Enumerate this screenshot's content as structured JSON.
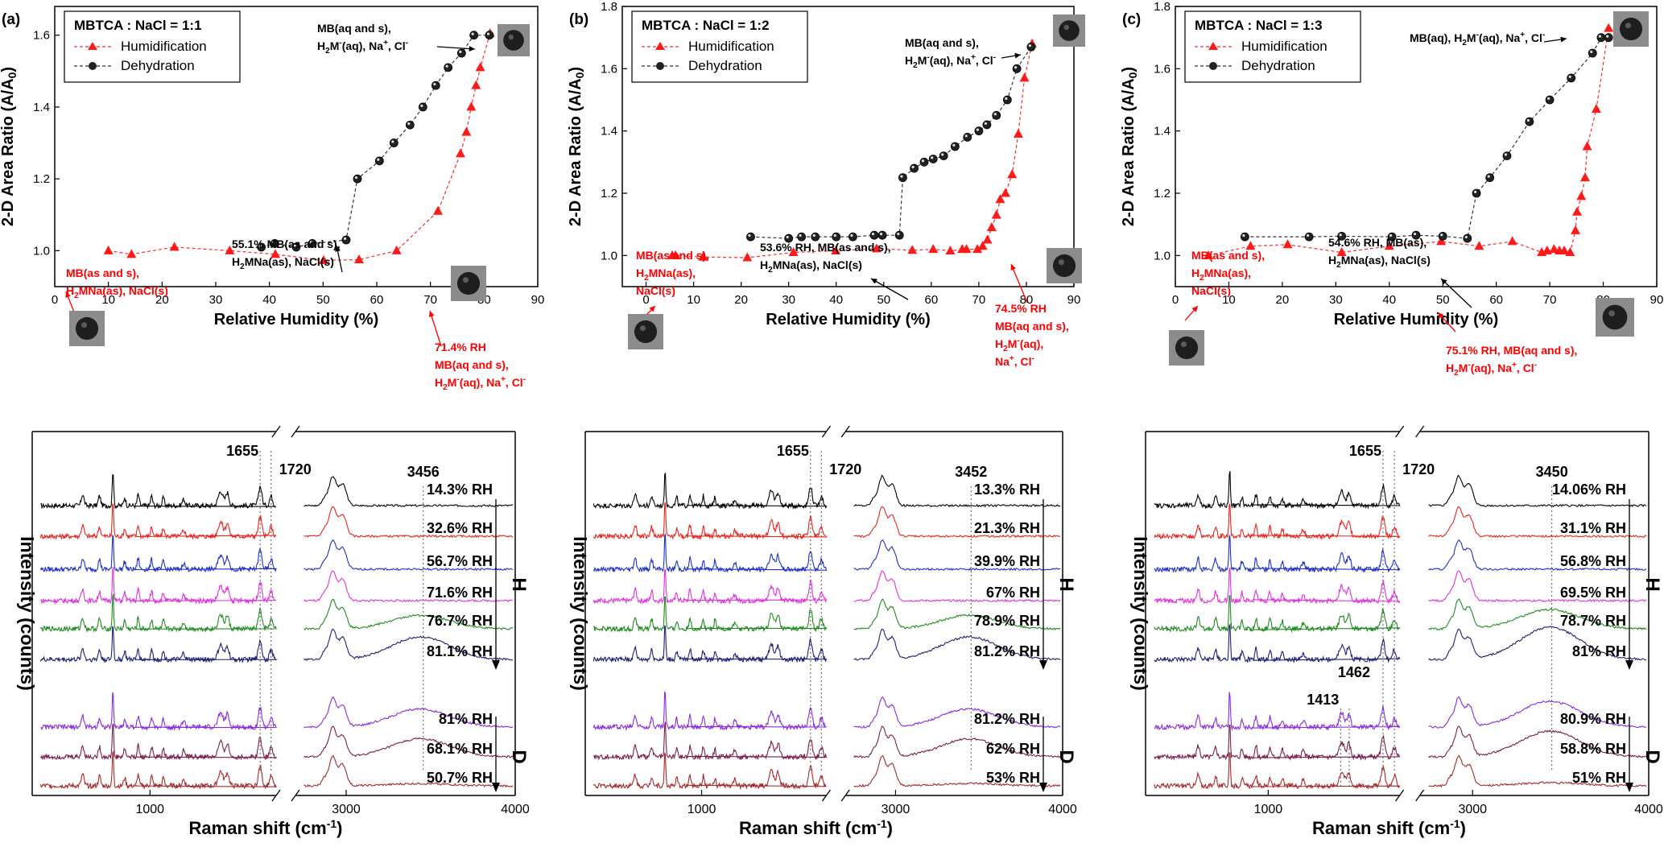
{
  "chart_data": [
    {
      "type": "line",
      "panel": "(a)",
      "legend_title": "MBTCA : NaCl = 1:1",
      "xlabel": "Relative Humidity (%)",
      "ylabel": "2-D Area Ratio (A/A0)",
      "xlim": [
        0,
        90
      ],
      "ylim": [
        0.9,
        1.68
      ],
      "xticks": [
        0,
        10,
        20,
        30,
        40,
        50,
        60,
        70,
        80,
        90
      ],
      "yticks": [
        1.0,
        1.2,
        1.4,
        1.6
      ],
      "series": [
        {
          "name": "Humidification",
          "color": "#ff2a2a",
          "marker": "triangle",
          "x": [
            10,
            14.3,
            22.3,
            32.6,
            41.1,
            50.1,
            56.7,
            63.7,
            71.4,
            75.6,
            76.7,
            77.6,
            78.5,
            79.3,
            81.1
          ],
          "y": [
            1.0,
            0.99,
            1.01,
            1.0,
            0.99,
            0.973,
            0.975,
            1.0,
            1.11,
            1.27,
            1.33,
            1.4,
            1.46,
            1.51,
            1.605
          ]
        },
        {
          "name": "Dehydration",
          "color": "#333333",
          "marker": "circle",
          "x": [
            38.5,
            41.0,
            45.0,
            48.0,
            54.3,
            56.4,
            60.5,
            63.2,
            66.2,
            68.6,
            71.0,
            73.3,
            75.8,
            78.1,
            81.0
          ],
          "y": [
            1.01,
            1.02,
            1.01,
            1.02,
            1.03,
            1.2,
            1.25,
            1.3,
            1.35,
            1.4,
            1.46,
            1.51,
            1.55,
            1.6,
            1.6
          ]
        }
      ],
      "annotations": [
        {
          "lines": [
            "MB(aq and s),",
            "H2M-(aq), Na+, Cl-"
          ],
          "color": "#000000"
        },
        {
          "lines": [
            "55.1% MB(as and s),",
            "H2MNa(as), NaCl(s)"
          ],
          "color": "#000000"
        },
        {
          "lines": [
            "MB(as and s),",
            "H2MNa(as), NaCl(s)"
          ],
          "color": "#ff0000"
        },
        {
          "lines": [
            "71.4% RH",
            "MB(aq and s),",
            "H2M-(aq), Na+, Cl-"
          ],
          "color": "#ff0000"
        }
      ]
    },
    {
      "type": "line",
      "panel": "(b)",
      "legend_title": "MBTCA : NaCl = 1:2",
      "xlabel": "Relative Humidity (%)",
      "ylabel": "2-D Area Ratio (A/A0)",
      "xlim": [
        -5,
        90
      ],
      "ylim": [
        0.9,
        1.8
      ],
      "xticks": [
        0,
        10,
        20,
        30,
        40,
        50,
        60,
        70,
        80,
        90
      ],
      "yticks": [
        1.0,
        1.2,
        1.4,
        1.6,
        1.8
      ],
      "series": [
        {
          "name": "Humidification",
          "color": "#ff2a2a",
          "marker": "triangle",
          "x": [
            5.5,
            6.2,
            12.0,
            21.3,
            31.0,
            39.9,
            48.5,
            56.0,
            60.4,
            64.0,
            66.5,
            67.4,
            69.7,
            70.8,
            71.8,
            72.7,
            73.7,
            74.5,
            75.6,
            77.0,
            78.3,
            79.6,
            81.2
          ],
          "y": [
            1.0,
            1.0,
            0.995,
            0.993,
            1.01,
            1.015,
            1.022,
            1.017,
            1.02,
            1.015,
            1.02,
            1.02,
            1.02,
            1.03,
            1.05,
            1.09,
            1.13,
            1.18,
            1.2,
            1.26,
            1.39,
            1.57,
            1.68
          ]
        },
        {
          "name": "Dehydration",
          "color": "#333333",
          "marker": "circle",
          "x": [
            22.0,
            30.0,
            32.7,
            35.6,
            40.0,
            43.5,
            48.0,
            49.7,
            53.3,
            54.0,
            56.4,
            58.5,
            60.4,
            62.6,
            65.0,
            67.6,
            70.0,
            71.7,
            73.7,
            76.0,
            78.0,
            81.0
          ],
          "y": [
            1.06,
            1.055,
            1.06,
            1.06,
            1.06,
            1.06,
            1.065,
            1.065,
            1.065,
            1.25,
            1.28,
            1.3,
            1.31,
            1.32,
            1.35,
            1.38,
            1.4,
            1.42,
            1.45,
            1.5,
            1.6,
            1.67
          ]
        }
      ],
      "annotations": [
        {
          "lines": [
            "MB(aq and s),",
            "H2M-(aq), Na+, Cl-"
          ],
          "color": "#000000"
        },
        {
          "lines": [
            "53.6% RH, MB(as and s),",
            "H2MNa(as), NaCl(s)"
          ],
          "color": "#000000"
        },
        {
          "lines": [
            "MB(as and s),",
            "H2MNa(as),",
            "NaCl(s)"
          ],
          "color": "#ff0000"
        },
        {
          "lines": [
            "74.5% RH",
            "MB(aq and s),",
            "H2M-(aq),",
            "Na+, Cl-"
          ],
          "color": "#ff0000"
        }
      ]
    },
    {
      "type": "line",
      "panel": "(c)",
      "legend_title": "MBTCA : NaCl = 1:3",
      "xlabel": "Relative Humidity (%)",
      "ylabel": "2-D Area Ratio (A/A0)",
      "xlim": [
        0,
        90
      ],
      "ylim": [
        0.9,
        1.8
      ],
      "xticks": [
        0,
        10,
        20,
        30,
        40,
        50,
        60,
        70,
        80,
        90
      ],
      "yticks": [
        1.0,
        1.2,
        1.4,
        1.6,
        1.8
      ],
      "series": [
        {
          "name": "Humidification",
          "color": "#ff2a2a",
          "marker": "triangle",
          "x": [
            6.2,
            14.06,
            21.0,
            31.1,
            40.0,
            49.7,
            56.8,
            63.0,
            68.5,
            69.5,
            70.8,
            71.8,
            72.7,
            73.8,
            74.8,
            75.1,
            75.9,
            76.6,
            77.0,
            78.7,
            81.0
          ],
          "y": [
            1.0,
            1.03,
            1.035,
            1.01,
            1.03,
            1.045,
            1.03,
            1.045,
            1.01,
            1.015,
            1.02,
            1.015,
            1.015,
            1.01,
            1.08,
            1.14,
            1.19,
            1.25,
            1.35,
            1.47,
            1.73
          ]
        },
        {
          "name": "Dehydration",
          "color": "#333333",
          "marker": "circle",
          "x": [
            13.0,
            25.0,
            31.1,
            40.5,
            45.0,
            50.0,
            54.6,
            56.3,
            58.8,
            62.0,
            66.2,
            70.0,
            74.0,
            78.0,
            79.6,
            81.0
          ],
          "y": [
            1.06,
            1.06,
            1.062,
            1.06,
            1.065,
            1.062,
            1.055,
            1.2,
            1.25,
            1.32,
            1.43,
            1.5,
            1.57,
            1.65,
            1.7,
            1.7
          ]
        }
      ],
      "annotations": [
        {
          "lines": [
            "MB(aq), H2M-(aq), Na+, Cl-"
          ],
          "color": "#000000"
        },
        {
          "lines": [
            "54.6% RH, MB(as),",
            "H2MNa(as), NaCl(s)"
          ],
          "color": "#000000"
        },
        {
          "lines": [
            "MB(as and s),",
            "H2MNa(as),",
            "NaCl(s)"
          ],
          "color": "#ff0000"
        },
        {
          "lines": [
            "75.1% RH, MB(aq and s),",
            "H2M-(aq), Na+, Cl-"
          ],
          "color": "#ff0000"
        }
      ]
    },
    {
      "type": "line",
      "panel": "(a) Raman",
      "xlabel": "Raman shift (cm-1)",
      "ylabel": "Intensity (counts)",
      "xlim": [
        300,
        4000
      ],
      "xticks": [
        1000,
        3000,
        4000
      ],
      "axis_break": [
        1750,
        2700
      ],
      "peak_labels": [
        1655,
        1720,
        3456
      ],
      "humidification_group": "H",
      "dehydration_group": "D",
      "series": [
        {
          "name": "14.3% RH",
          "color": "#000000"
        },
        {
          "name": "32.6% RH",
          "color": "#e8251e"
        },
        {
          "name": "56.7% RH",
          "color": "#1f30c8"
        },
        {
          "name": "71.6% RH",
          "color": "#e030e0"
        },
        {
          "name": "76.7% RH",
          "color": "#1f8c1f"
        },
        {
          "name": "81.1% RH",
          "color": "#1f1f7a"
        },
        {
          "name": "81% RH",
          "color": "#8a2be2"
        },
        {
          "name": "68.1% RH",
          "color": "#7a1f4a"
        },
        {
          "name": "50.7% RH",
          "color": "#a52a2a"
        }
      ]
    },
    {
      "type": "line",
      "panel": "(b) Raman",
      "xlabel": "Raman shift (cm-1)",
      "ylabel": "Intensity (counts)",
      "xlim": [
        300,
        4000
      ],
      "xticks": [
        1000,
        3000,
        4000
      ],
      "axis_break": [
        1750,
        2700
      ],
      "peak_labels": [
        1655,
        1720,
        3452
      ],
      "humidification_group": "H",
      "dehydration_group": "D",
      "series": [
        {
          "name": "13.3% RH",
          "color": "#000000"
        },
        {
          "name": "21.3% RH",
          "color": "#e8251e"
        },
        {
          "name": "39.9% RH",
          "color": "#1f30c8"
        },
        {
          "name": "67% RH",
          "color": "#e030e0"
        },
        {
          "name": "78.9% RH",
          "color": "#1f8c1f"
        },
        {
          "name": "81.2% RH",
          "color": "#1f1f7a"
        },
        {
          "name": "81.2% RH",
          "color": "#8a2be2"
        },
        {
          "name": "62% RH",
          "color": "#7a1f4a"
        },
        {
          "name": "53% RH",
          "color": "#a52a2a"
        }
      ]
    },
    {
      "type": "line",
      "panel": "(c) Raman",
      "xlabel": "Raman shift (cm-1)",
      "ylabel": "Intensity (counts)",
      "xlim": [
        300,
        4000
      ],
      "xticks": [
        1000,
        3000,
        4000
      ],
      "axis_break": [
        1750,
        2700
      ],
      "peak_labels": [
        1655,
        1720,
        3450,
        1413,
        1462
      ],
      "humidification_group": "H",
      "dehydration_group": "D",
      "series": [
        {
          "name": "14.06% RH",
          "color": "#000000"
        },
        {
          "name": "31.1% RH",
          "color": "#e8251e"
        },
        {
          "name": "56.8% RH",
          "color": "#1f30c8"
        },
        {
          "name": "69.5% RH",
          "color": "#e030e0"
        },
        {
          "name": "78.7% RH",
          "color": "#1f8c1f"
        },
        {
          "name": "81% RH",
          "color": "#1f1f7a"
        },
        {
          "name": "80.9% RH",
          "color": "#8a2be2"
        },
        {
          "name": "58.8% RH",
          "color": "#7a1f4a"
        },
        {
          "name": "51% RH",
          "color": "#a52a2a"
        }
      ]
    }
  ]
}
